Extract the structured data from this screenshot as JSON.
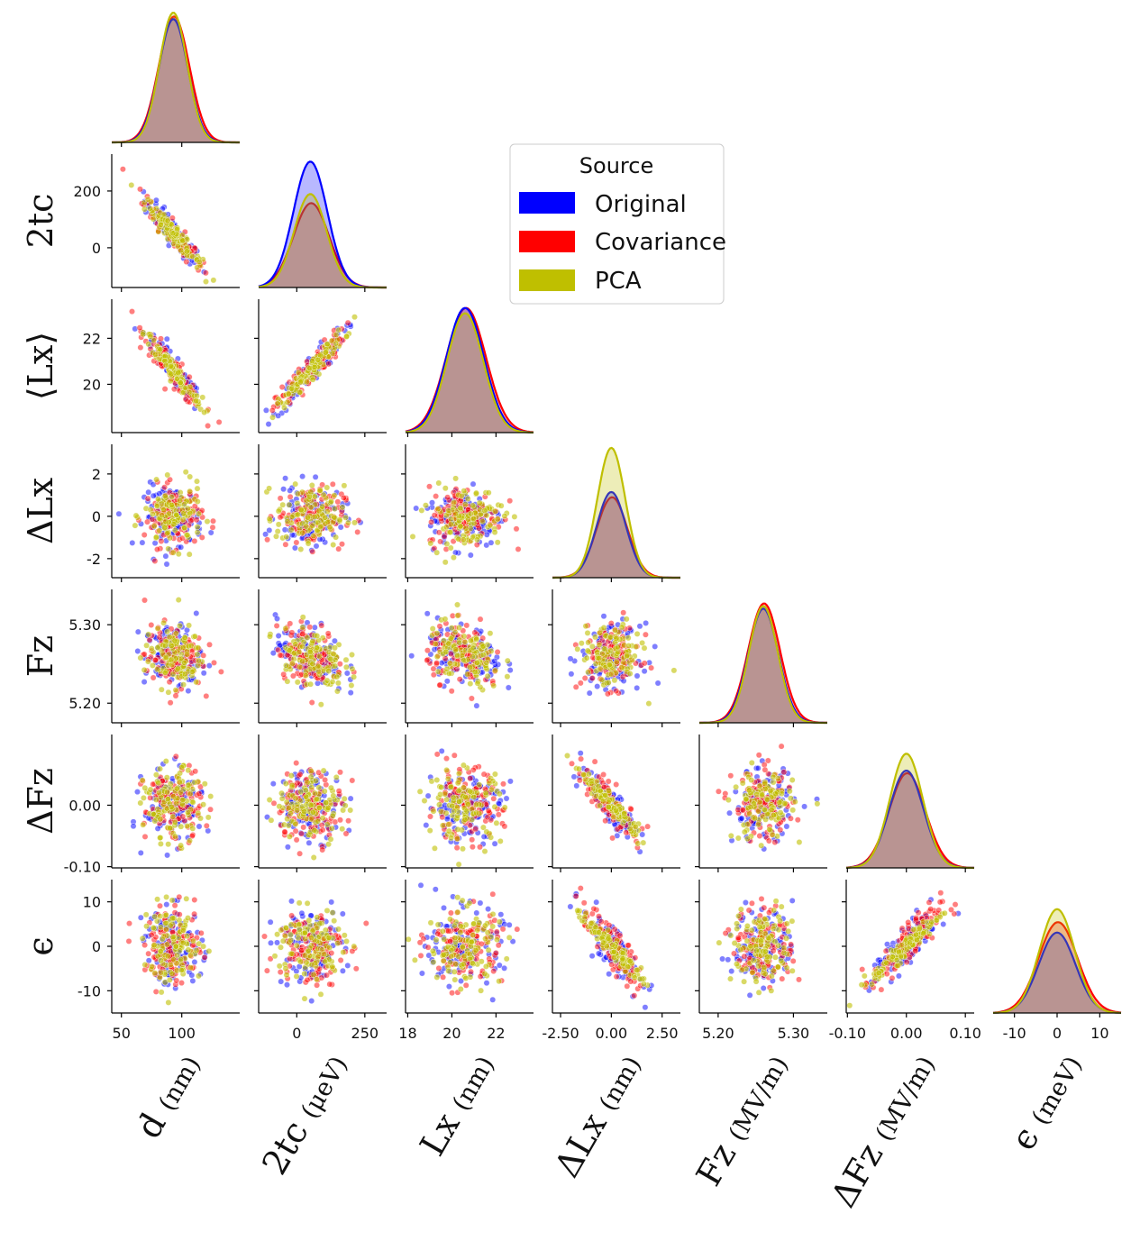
{
  "chart_data": {
    "type": "scatter",
    "layout": "pairplot-lower-triangle",
    "variables": [
      {
        "key": "d",
        "row_label": "",
        "col_label": "d",
        "unit": "(nm)",
        "range": [
          42,
          148
        ],
        "ticks": [
          {
            "v": 50,
            "t": "50"
          },
          {
            "v": 100,
            "t": "100"
          }
        ],
        "mean": 93,
        "sd": 12
      },
      {
        "key": "2tc",
        "row_label": "2tc",
        "col_label": "2tc",
        "unit": "(μeV)",
        "range": [
          -140,
          330
        ],
        "ticks": [
          {
            "v": 0,
            "t": "0"
          },
          {
            "v": 200,
            "t": "200"
          }
        ],
        "col_ticks": [
          {
            "v": 0,
            "t": "0"
          },
          {
            "v": 250,
            "t": "250"
          }
        ],
        "mean": 50,
        "sd": 62
      },
      {
        "key": "Lx",
        "row_label": "⟨Lx⟩",
        "col_label": "Lx",
        "unit": "(nm)",
        "range": [
          17.9,
          23.7
        ],
        "ticks": [
          {
            "v": 20,
            "t": "20"
          },
          {
            "v": 22,
            "t": "22"
          }
        ],
        "col_ticks": [
          {
            "v": 18,
            "t": "18"
          },
          {
            "v": 20,
            "t": "20"
          },
          {
            "v": 22,
            "t": "22"
          }
        ],
        "mean": 20.6,
        "sd": 0.85
      },
      {
        "key": "dLx",
        "row_label": "ΔLx",
        "col_label": "ΔLx",
        "unit": "(nm)",
        "range": [
          -2.9,
          3.4
        ],
        "ticks": [
          {
            "v": -2,
            "t": "-2"
          },
          {
            "v": 0,
            "t": "0"
          },
          {
            "v": 2,
            "t": "2"
          }
        ],
        "col_ticks": [
          {
            "v": -2.5,
            "t": "-2.50"
          },
          {
            "v": 0,
            "t": "0.00"
          },
          {
            "v": 2.5,
            "t": "2.50"
          }
        ],
        "mean": 0,
        "sd": 0.72
      },
      {
        "key": "Fz",
        "row_label": "Fz",
        "col_label": "Fz",
        "unit": "(MV/m)",
        "range": [
          5.175,
          5.345
        ],
        "ticks": [
          {
            "v": 5.2,
            "t": "5.20"
          },
          {
            "v": 5.3,
            "t": "5.30"
          }
        ],
        "col_ticks": [
          {
            "v": 5.2,
            "t": "5.20"
          },
          {
            "v": 5.3,
            "t": "5.30"
          }
        ],
        "mean": 5.26,
        "sd": 0.02
      },
      {
        "key": "dFz",
        "row_label": "ΔFz",
        "col_label": "ΔFz",
        "unit": "(MV/m)",
        "range": [
          -0.102,
          0.115
        ],
        "ticks": [
          {
            "v": 0,
            "t": "0.00"
          },
          {
            "v": -0.1,
            "t": "-0.10"
          }
        ],
        "col_ticks": [
          {
            "v": -0.1,
            "t": "-0.10"
          },
          {
            "v": 0,
            "t": "0.00"
          },
          {
            "v": 0.1,
            "t": "0.10"
          }
        ],
        "mean": 0,
        "sd": 0.029
      },
      {
        "key": "eps",
        "row_label": "ϵ",
        "col_label": "ϵ",
        "unit": "(meV)",
        "range": [
          -15,
          15
        ],
        "ticks": [
          {
            "v": -10,
            "t": "-10"
          },
          {
            "v": 0,
            "t": "0"
          },
          {
            "v": 10,
            "t": "10"
          }
        ],
        "col_ticks": [
          {
            "v": -10,
            "t": "-10"
          },
          {
            "v": 0,
            "t": "0"
          },
          {
            "v": 10,
            "t": "10"
          }
        ],
        "mean": 0,
        "sd": 4.3
      }
    ],
    "correlations": [
      {
        "a": 0,
        "b": 1,
        "r": -0.93
      },
      {
        "a": 0,
        "b": 2,
        "r": -0.93
      },
      {
        "a": 1,
        "b": 2,
        "r": 0.93
      },
      {
        "a": 3,
        "b": 5,
        "r": -0.85
      },
      {
        "a": 3,
        "b": 6,
        "r": -0.82
      },
      {
        "a": 5,
        "b": 6,
        "r": 0.82
      },
      {
        "a": 1,
        "b": 4,
        "r": -0.3
      },
      {
        "a": 2,
        "b": 4,
        "r": -0.3
      }
    ],
    "series": [
      {
        "name": "Original",
        "color": "#0000ff",
        "kde_peak_scale": [
          0.95,
          0.97,
          0.96,
          0.66,
          0.88,
          0.75,
          0.62
        ],
        "points_per_panel": 110
      },
      {
        "name": "Covariance",
        "color": "#ff0000",
        "kde_peak_scale": [
          0.97,
          0.65,
          0.96,
          0.62,
          0.92,
          0.73,
          0.7
        ],
        "points_per_panel": 110
      },
      {
        "name": "PCA",
        "color": "#bfbf00",
        "kde_peak_scale": [
          1.0,
          0.72,
          0.92,
          1.0,
          0.9,
          0.88,
          0.8
        ],
        "points_per_panel": 110
      }
    ],
    "legend": {
      "title": "Source",
      "position": "upper-center"
    }
  },
  "legend": {
    "title": "Source",
    "items": [
      {
        "label": "Original",
        "color": "#0000ff"
      },
      {
        "label": "Covariance",
        "color": "#ff0000"
      },
      {
        "label": "PCA",
        "color": "#bfbf00"
      }
    ]
  }
}
